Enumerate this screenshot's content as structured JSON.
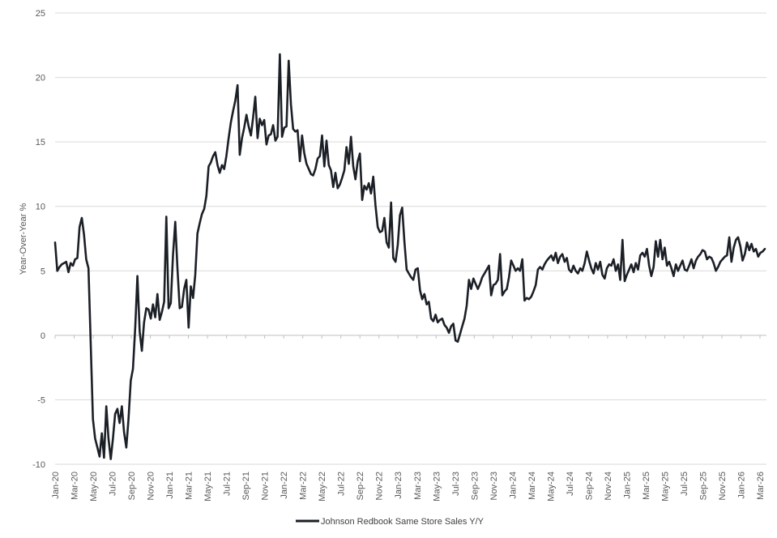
{
  "chart_data": {
    "type": "line",
    "title": "",
    "xlabel": "",
    "ylabel": "Year-Over-Year %",
    "ylim": [
      -10,
      25
    ],
    "yticks": [
      -10,
      -5,
      0,
      5,
      10,
      15,
      20,
      25
    ],
    "grid": true,
    "legend_position": "bottom-center",
    "colors": {
      "line": "#1b1f26",
      "grid": "#d9d9d9",
      "axis": "#bfbfbf",
      "text": "#595959"
    },
    "xtick_labels": [
      "Jan-20",
      "Mar-20",
      "May-20",
      "Jul-20",
      "Sep-20",
      "Nov-20",
      "Jan-21",
      "Mar-21",
      "May-21",
      "Jul-21",
      "Sep-21",
      "Nov-21",
      "Jan-22",
      "Mar-22",
      "May-22",
      "Jul-22",
      "Sep-22",
      "Nov-22",
      "Jan-23",
      "Mar-23",
      "May-23",
      "Jul-23",
      "Sep-23",
      "Nov-23",
      "Jan-24",
      "Mar-24",
      "May-24",
      "Jul-24",
      "Sep-24",
      "Nov-24",
      "Jan-25",
      "Mar-25",
      "May-25",
      "Jul-25",
      "Sep-25",
      "Nov-25",
      "Jan-26",
      "Mar-26"
    ],
    "series": [
      {
        "name": "Johnson Redbook Same Store Sales Y/Y",
        "x_start": "2020-01-04",
        "x_step_days": 7,
        "values": [
          7.2,
          5.0,
          5.3,
          5.5,
          5.6,
          5.7,
          4.9,
          5.6,
          5.4,
          5.9,
          6.0,
          8.4,
          9.1,
          7.8,
          5.9,
          5.2,
          -0.5,
          -6.5,
          -8.0,
          -8.7,
          -9.4,
          -7.6,
          -9.5,
          -5.5,
          -8.0,
          -9.6,
          -8.0,
          -6.1,
          -5.7,
          -6.8,
          -5.5,
          -7.5,
          -8.7,
          -6.5,
          -3.5,
          -2.6,
          0.6,
          4.6,
          0.3,
          -1.2,
          1.0,
          2.1,
          2.0,
          1.3,
          2.4,
          1.4,
          3.2,
          1.2,
          1.8,
          2.6,
          9.2,
          2.1,
          2.5,
          6.2,
          8.8,
          5.2,
          2.1,
          2.2,
          3.6,
          4.3,
          0.6,
          3.8,
          2.9,
          4.7,
          7.9,
          8.7,
          9.4,
          9.8,
          10.8,
          13.1,
          13.4,
          13.9,
          14.2,
          13.2,
          12.6,
          13.2,
          12.9,
          13.9,
          15.3,
          16.5,
          17.4,
          18.2,
          19.4,
          14.0,
          15.3,
          16.1,
          17.1,
          16.2,
          15.5,
          16.9,
          18.5,
          15.3,
          16.8,
          16.3,
          16.7,
          14.8,
          15.5,
          15.6,
          16.3,
          15.1,
          15.4,
          21.8,
          15.4,
          16.1,
          16.2,
          21.3,
          17.9,
          16.0,
          15.8,
          15.9,
          13.5,
          15.5,
          14.1,
          13.3,
          12.9,
          12.5,
          12.4,
          12.9,
          13.7,
          13.9,
          15.5,
          13.1,
          15.1,
          13.2,
          12.8,
          11.5,
          12.6,
          11.4,
          11.7,
          12.2,
          12.8,
          14.6,
          13.3,
          15.4,
          13.1,
          12.1,
          13.5,
          14.1,
          10.5,
          11.6,
          11.3,
          11.8,
          11.0,
          12.3,
          10.1,
          8.4,
          8.0,
          8.1,
          9.1,
          7.2,
          6.8,
          10.3,
          6.0,
          5.7,
          7.0,
          9.3,
          9.9,
          7.3,
          5.1,
          4.8,
          4.5,
          4.3,
          5.1,
          5.2,
          3.5,
          2.8,
          3.2,
          2.4,
          2.6,
          1.3,
          1.1,
          1.6,
          1.0,
          1.2,
          1.3,
          0.8,
          0.6,
          0.2,
          0.7,
          0.9,
          -0.4,
          -0.5,
          0.1,
          0.7,
          1.3,
          2.3,
          4.3,
          3.6,
          4.4,
          4.0,
          3.6,
          4.0,
          4.5,
          4.8,
          5.1,
          5.4,
          3.1,
          3.9,
          4.0,
          4.3,
          6.3,
          3.1,
          3.4,
          3.6,
          4.5,
          5.8,
          5.4,
          5.0,
          5.2,
          5.0,
          5.9,
          2.7,
          2.9,
          2.8,
          3.0,
          3.4,
          3.9,
          5.1,
          5.3,
          5.1,
          5.5,
          5.8,
          6.0,
          6.2,
          5.8,
          6.4,
          5.6,
          6.1,
          6.3,
          5.7,
          6.0,
          5.1,
          4.9,
          5.4,
          5.0,
          4.8,
          5.2,
          5.0,
          5.6,
          6.5,
          5.8,
          5.2,
          4.8,
          5.6,
          5.1,
          5.7,
          4.7,
          4.4,
          5.2,
          5.5,
          5.4,
          5.9,
          5.0,
          5.5,
          4.3,
          7.4,
          4.2,
          4.7,
          5.1,
          5.5,
          4.9,
          5.6,
          5.1,
          6.2,
          6.4,
          6.1,
          6.7,
          5.4,
          4.6,
          5.3,
          7.3,
          6.1,
          7.4,
          5.9,
          6.8,
          5.4,
          5.7,
          5.2,
          4.6,
          5.5,
          5.0,
          5.4,
          5.8,
          5.1,
          5.0,
          5.4,
          5.9,
          5.2,
          5.8,
          6.1,
          6.3,
          6.6,
          6.5,
          5.9,
          6.1,
          6.0,
          5.6,
          5.0,
          5.3,
          5.7,
          5.9,
          6.1,
          6.2,
          7.6,
          5.7,
          6.8,
          7.4,
          7.6,
          6.9,
          5.8,
          6.3,
          7.2,
          6.6,
          7.1,
          6.5,
          6.7,
          6.1,
          6.4,
          6.5,
          6.7
        ]
      }
    ]
  }
}
